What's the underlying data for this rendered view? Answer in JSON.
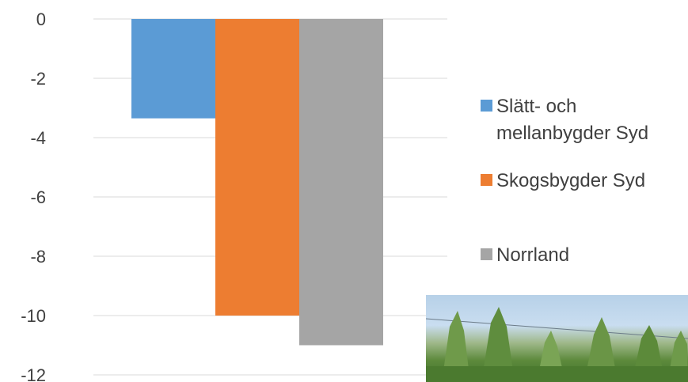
{
  "chart_data": {
    "type": "bar",
    "categories": [
      ""
    ],
    "series": [
      {
        "name": "Slätt- och mellanbygder Syd",
        "values": [
          -3.35
        ],
        "color": "#5b9bd5"
      },
      {
        "name": "Skogsbygder Syd",
        "values": [
          -10.0
        ],
        "color": "#ed7d31"
      },
      {
        "name": "Norrland",
        "values": [
          -11.0
        ],
        "color": "#a5a5a5"
      }
    ],
    "yticks": [
      "0",
      "-2",
      "-4",
      "-6",
      "-8",
      "-10",
      "-12"
    ],
    "ylim": [
      -12,
      0
    ],
    "grid": true,
    "legend_position": "right"
  },
  "legend": {
    "items": [
      {
        "label": "Slätt- och mellanbygder Syd",
        "color": "#5b9bd5"
      },
      {
        "label": "Skogsbygder Syd",
        "color": "#ed7d31"
      },
      {
        "label": "Norrland",
        "color": "#a5a5a5"
      }
    ]
  },
  "photo": {
    "icon": "tree-plantation-photo"
  }
}
